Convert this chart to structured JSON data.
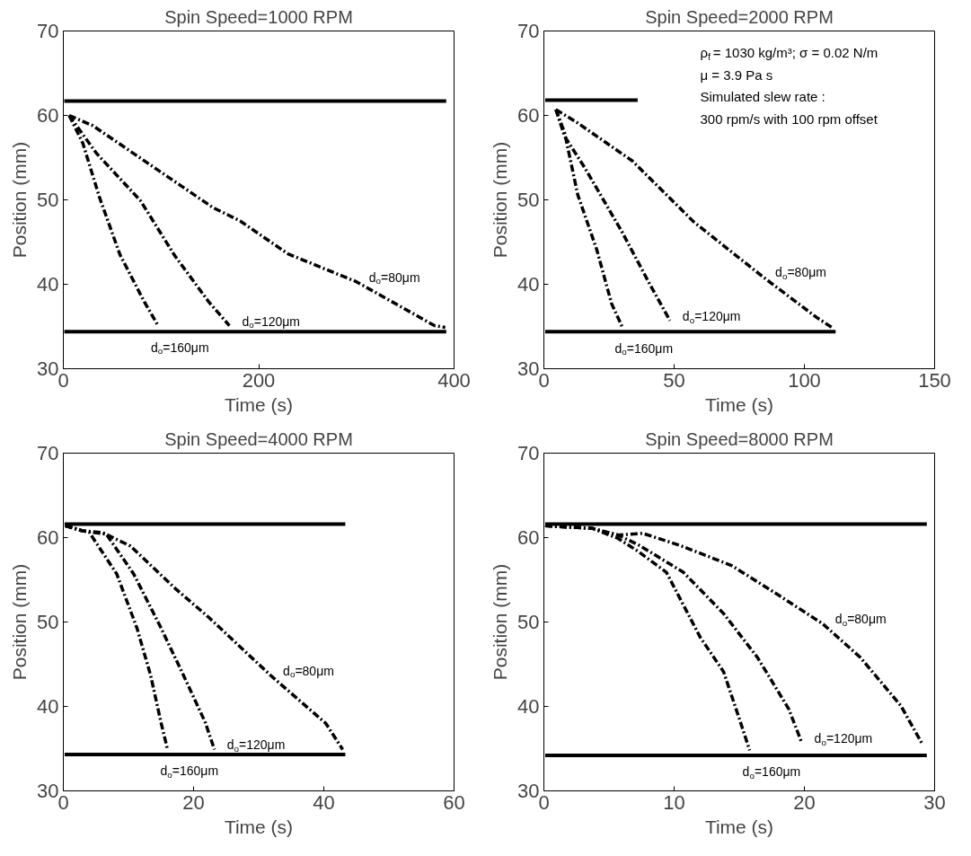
{
  "chart_data": [
    {
      "type": "line",
      "title": "Spin Speed=1000 RPM",
      "xlabel": "Time (s)",
      "ylabel": "Position (mm)",
      "xlim": [
        0,
        400
      ],
      "xticks": [
        0,
        200,
        400
      ],
      "ylim": [
        30,
        70
      ],
      "yticks": [
        30,
        40,
        50,
        60,
        70
      ],
      "grid": false,
      "legend": false,
      "series": [
        {
          "color": "#000000",
          "line_style": "solid",
          "x": [
            1,
            392
          ],
          "values": [
            61.7,
            61.7
          ]
        },
        {
          "color": "#000000",
          "line_style": "solid",
          "x": [
            1,
            392
          ],
          "values": [
            34.4,
            34.4
          ]
        },
        {
          "name": "d$_{o}$=80μm",
          "color": "#000000",
          "line_style": "dashed",
          "x": [
            6,
            30,
            153,
            181,
            230,
            300,
            380,
            391
          ],
          "values": [
            60.0,
            58.8,
            49.1,
            47.5,
            43.6,
            40.3,
            35.1,
            34.9
          ]
        },
        {
          "name": "d$_{o}$=120μm",
          "color": "#000000",
          "line_style": "dashed",
          "x": [
            6,
            34,
            79,
            114,
            149,
            170
          ],
          "values": [
            60.0,
            55.5,
            49.9,
            43.4,
            37.9,
            35.1
          ]
        },
        {
          "name": "d$_{o}$=160μm",
          "color": "#000000",
          "line_style": "dashed",
          "x": [
            6,
            20,
            37,
            58,
            83,
            97
          ],
          "values": [
            60.0,
            56.7,
            50.3,
            43.5,
            37.9,
            35.1
          ]
        }
      ]
    },
    {
      "type": "line",
      "title": "Spin Speed=2000 RPM",
      "xlabel": "Time (s)",
      "ylabel": "Position (mm)",
      "xlim": [
        0,
        150
      ],
      "xticks": [
        0,
        50,
        100,
        150
      ],
      "ylim": [
        30,
        70
      ],
      "yticks": [
        30,
        40,
        50,
        60,
        70
      ],
      "grid": false,
      "legend": false,
      "series": [
        {
          "color": "#000000",
          "line_style": "solid",
          "x": [
            0.5,
            36
          ],
          "values": [
            61.8,
            61.8
          ]
        },
        {
          "color": "#000000",
          "line_style": "solid",
          "x": [
            0.5,
            112
          ],
          "values": [
            34.4,
            34.4
          ]
        },
        {
          "name": "d$_{o}$=80μm",
          "color": "#000000",
          "line_style": "dashed",
          "x": [
            4.6,
            13,
            34,
            57.5,
            84,
            104.6,
            110.5
          ],
          "values": [
            60.7,
            59.1,
            54.6,
            47.4,
            40.9,
            36.1,
            34.9
          ]
        },
        {
          "name": "d$_{o}$=120μm",
          "color": "#000000",
          "line_style": "dashed",
          "x": [
            4.6,
            8,
            15.7,
            30,
            40.5,
            48.4
          ],
          "values": [
            60.7,
            57.5,
            53.8,
            46.2,
            40.1,
            35.7
          ]
        },
        {
          "name": "d$_{o}$=160μm",
          "color": "#000000",
          "line_style": "dashed",
          "x": [
            4.6,
            8,
            13,
            20.3,
            26,
            30
          ],
          "values": [
            60.7,
            57.9,
            50.6,
            44.1,
            37.7,
            35.0
          ]
        }
      ],
      "annotations": [
        "ρ$_{f}$ = 1030 kg/m³; σ = 0.02 N/m",
        "μ = 3.9 Pa s",
        "Simulated slew rate :",
        "300 rpm/s with 100 rpm offset"
      ]
    },
    {
      "type": "line",
      "title": "Spin Speed=4000 RPM",
      "xlabel": "Time (s)",
      "ylabel": "Position (mm)",
      "xlim": [
        0,
        60
      ],
      "xticks": [
        0,
        20,
        40,
        60
      ],
      "ylim": [
        30,
        70
      ],
      "yticks": [
        30,
        40,
        50,
        60,
        70
      ],
      "grid": false,
      "legend": false,
      "series": [
        {
          "color": "#000000",
          "line_style": "solid",
          "x": [
            0.2,
            43.3
          ],
          "values": [
            61.6,
            61.6
          ]
        },
        {
          "color": "#000000",
          "line_style": "solid",
          "x": [
            0.2,
            43.3
          ],
          "values": [
            34.3,
            34.3
          ]
        },
        {
          "name": "d$_{o}$=80μm",
          "color": "#000000",
          "line_style": "dashed",
          "x": [
            0.3,
            2.9,
            6,
            10.3,
            17,
            22.4,
            31.8,
            40.3,
            42.9
          ],
          "values": [
            61.4,
            60.8,
            60.6,
            59.0,
            54.1,
            50.5,
            43.7,
            38.0,
            34.9
          ]
        },
        {
          "name": "d$_{o}$=120μm",
          "color": "#000000",
          "line_style": "dashed",
          "x": [
            0.3,
            2.9,
            6.6,
            10.8,
            15,
            18.2,
            21.8,
            23.2
          ],
          "values": [
            61.4,
            60.8,
            60.4,
            55.7,
            49.3,
            44.1,
            38.1,
            34.9
          ]
        },
        {
          "name": "d$_{o}$=160μm",
          "color": "#000000",
          "line_style": "dashed",
          "x": [
            0.3,
            4,
            8.2,
            11.3,
            13.4,
            15,
            16
          ],
          "values": [
            61.4,
            60.6,
            55.7,
            49.3,
            43.7,
            38.1,
            34.9
          ]
        }
      ]
    },
    {
      "type": "line",
      "title": "Spin Speed=8000 RPM",
      "xlabel": "Time (s)",
      "ylabel": "Position (mm)",
      "xlim": [
        0,
        30
      ],
      "xticks": [
        0,
        10,
        20,
        30
      ],
      "ylim": [
        30,
        70
      ],
      "yticks": [
        30,
        40,
        50,
        60,
        70
      ],
      "grid": false,
      "legend": false,
      "series": [
        {
          "color": "#000000",
          "line_style": "solid",
          "x": [
            0.1,
            29.4
          ],
          "values": [
            61.6,
            61.6
          ]
        },
        {
          "color": "#000000",
          "line_style": "solid",
          "x": [
            0.1,
            29.4
          ],
          "values": [
            34.2,
            34.2
          ]
        },
        {
          "name": "d$_{o}$=80μm",
          "color": "#000000",
          "line_style": "dashed",
          "x": [
            0.1,
            3.7,
            5.7,
            7.6,
            10.4,
            14.4,
            17.8,
            21.4,
            24.3,
            27.4,
            29
          ],
          "values": [
            61.4,
            61.1,
            60.3,
            60.5,
            59.1,
            56.7,
            53.4,
            49.8,
            45.8,
            40.1,
            35.7
          ]
        },
        {
          "name": "d$_{o}$=120μm",
          "color": "#000000",
          "line_style": "dashed",
          "x": [
            0.1,
            3.7,
            5.7,
            7.3,
            10.7,
            13.8,
            16.4,
            18.8,
            19.8
          ],
          "values": [
            61.4,
            61.1,
            60.3,
            59.1,
            55.9,
            51.0,
            45.8,
            39.7,
            35.7
          ]
        },
        {
          "name": "d$_{o}$=160μm",
          "color": "#000000",
          "line_style": "dashed",
          "x": [
            0.1,
            3.7,
            5.7,
            7.3,
            9.4,
            12,
            13.8,
            15.1,
            15.8
          ],
          "values": [
            61.4,
            61.1,
            59.9,
            58.3,
            55.9,
            48.2,
            44.1,
            38.1,
            34.8
          ]
        }
      ]
    }
  ]
}
